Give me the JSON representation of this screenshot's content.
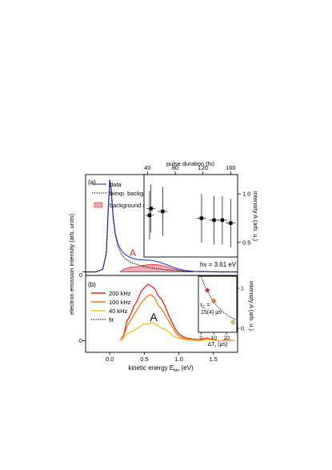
{
  "chart_data": [
    {
      "panel_label": "(a)",
      "type": "line",
      "ylabel": "electron emission intensity (arb. units)",
      "y_tick_labels": [
        "0"
      ],
      "annotation_peak": "A",
      "annotation_photon": "hν = 3.61 eV",
      "legend": [
        "data",
        "biexp. background",
        "background subtracted"
      ],
      "legend_placement": "upper-left inside panel",
      "x_range": [
        -0.35,
        1.85
      ],
      "y_range": [
        -0.03,
        1.05
      ],
      "series": [
        {
          "name": "data",
          "color": "#3a4fd8",
          "x": [
            -0.35,
            -0.2,
            -0.1,
            -0.05,
            -0.02,
            0.0,
            0.02,
            0.05,
            0.08,
            0.12,
            0.17,
            0.22,
            0.3,
            0.4,
            0.5,
            0.6,
            0.7,
            0.8,
            0.9,
            1.0,
            1.1,
            1.2,
            1.4,
            1.6,
            1.85
          ],
          "y": [
            0.0,
            0.0,
            0.03,
            0.2,
            0.72,
            1.0,
            0.9,
            0.6,
            0.42,
            0.3,
            0.23,
            0.19,
            0.155,
            0.135,
            0.13,
            0.125,
            0.11,
            0.085,
            0.055,
            0.03,
            0.015,
            0.007,
            0.003,
            0.0,
            0.0
          ]
        },
        {
          "name": "biexp. background",
          "color": "#000000",
          "x": [
            -0.35,
            -0.2,
            -0.1,
            -0.05,
            -0.02,
            0.0,
            0.02,
            0.05,
            0.08,
            0.12,
            0.17,
            0.22,
            0.3,
            0.4,
            0.5,
            0.6,
            0.7,
            0.8,
            0.9,
            1.0,
            1.1,
            1.2,
            1.4,
            1.6,
            1.85
          ],
          "y": [
            0.0,
            0.0,
            0.03,
            0.2,
            0.72,
            1.0,
            0.88,
            0.58,
            0.4,
            0.27,
            0.19,
            0.145,
            0.105,
            0.078,
            0.058,
            0.043,
            0.032,
            0.023,
            0.016,
            0.011,
            0.007,
            0.004,
            0.0015,
            0.0005,
            0.0
          ]
        },
        {
          "name": "background subtracted",
          "color": "#f2a7b8",
          "x": [
            0.15,
            0.2,
            0.3,
            0.4,
            0.5,
            0.6,
            0.7,
            0.8,
            0.9,
            1.0,
            1.1,
            1.2
          ],
          "y": [
            0.0,
            0.03,
            0.05,
            0.057,
            0.072,
            0.082,
            0.078,
            0.062,
            0.039,
            0.019,
            0.008,
            0.003
          ]
        }
      ]
    },
    {
      "panel_label": "",
      "type": "scatter",
      "x_axis_title": "pulse duration (fs)",
      "x_tick_labels": [
        "40",
        "80",
        "120",
        "160"
      ],
      "ylabel": "intensity A (arb. u.)",
      "y_tick_labels": [
        "0.5",
        "1.0"
      ],
      "x_range": [
        35,
        170
      ],
      "y_range": [
        0.35,
        1.2
      ],
      "points": [
        {
          "x": 45,
          "y": 0.85,
          "xerr": 6,
          "yerr": 0.25
        },
        {
          "x": 43,
          "y": 0.78,
          "xerr": 6,
          "yerr": 0.25
        },
        {
          "x": 62,
          "y": 0.82,
          "xerr": 7,
          "yerr": 0.25
        },
        {
          "x": 118,
          "y": 0.75,
          "xerr": 7,
          "yerr": 0.25
        },
        {
          "x": 136,
          "y": 0.73,
          "xerr": 7,
          "yerr": 0.25
        },
        {
          "x": 148,
          "y": 0.73,
          "xerr": 7,
          "yerr": 0.25
        },
        {
          "x": 160,
          "y": 0.7,
          "xerr": 7,
          "yerr": 0.25
        }
      ]
    },
    {
      "panel_label": "(b)",
      "type": "line",
      "xlabel": "kinetic energy E",
      "xlabel_subscript": "kin",
      "xlabel_unit": " (eV)",
      "x_tick_labels": [
        "0.0",
        "0.5",
        "1.0",
        "1.5"
      ],
      "y_tick_labels": [
        "0"
      ],
      "annotation_peak": "A",
      "legend": [
        "200 kHz",
        "100 kHz",
        "40 kHz",
        "fit"
      ],
      "legend_placement": "upper-left inside panel",
      "x_range": [
        -0.35,
        1.85
      ],
      "y_range": [
        -0.2,
        1.05
      ],
      "series": [
        {
          "name": "200 kHz",
          "color": "#e52a1f",
          "x": [
            0.15,
            0.2,
            0.25,
            0.3,
            0.35,
            0.4,
            0.45,
            0.5,
            0.55,
            0.6,
            0.65,
            0.7,
            0.75,
            0.8,
            0.85,
            0.9,
            0.95,
            1.0,
            1.05,
            1.1,
            1.2,
            1.3,
            1.4,
            1.5,
            1.6,
            1.7,
            1.8
          ],
          "y": [
            0.0,
            0.1,
            0.35,
            0.45,
            0.6,
            0.7,
            0.85,
            0.92,
            0.98,
            0.95,
            0.9,
            0.78,
            0.72,
            0.6,
            0.45,
            0.32,
            0.2,
            0.12,
            0.08,
            0.05,
            0.03,
            0.02,
            0.05,
            0.02,
            0.0,
            0.02,
            0.0
          ]
        },
        {
          "name": "100 kHz",
          "color": "#f07a1a",
          "x": [
            0.15,
            0.2,
            0.25,
            0.3,
            0.35,
            0.4,
            0.45,
            0.5,
            0.55,
            0.6,
            0.65,
            0.7,
            0.75,
            0.8,
            0.85,
            0.9,
            0.95,
            1.0,
            1.05,
            1.1,
            1.2,
            1.3,
            1.4,
            1.5,
            1.6,
            1.7,
            1.8
          ],
          "y": [
            0.0,
            0.08,
            0.25,
            0.35,
            0.45,
            0.55,
            0.65,
            0.72,
            0.78,
            0.8,
            0.74,
            0.62,
            0.55,
            0.45,
            0.35,
            0.25,
            0.15,
            0.08,
            0.05,
            0.03,
            0.02,
            0.01,
            0.04,
            0.01,
            0.0,
            0.01,
            0.0
          ]
        },
        {
          "name": "40 kHz",
          "color": "#f5c11a",
          "x": [
            0.15,
            0.2,
            0.25,
            0.3,
            0.35,
            0.4,
            0.45,
            0.5,
            0.55,
            0.6,
            0.65,
            0.7,
            0.75,
            0.8,
            0.85,
            0.9,
            0.95,
            1.0,
            1.05,
            1.1,
            1.2,
            1.3,
            1.4,
            1.5,
            1.6,
            1.7,
            1.8
          ],
          "y": [
            0.0,
            0.05,
            0.12,
            0.15,
            0.18,
            0.22,
            0.26,
            0.3,
            0.28,
            0.32,
            0.3,
            0.25,
            0.22,
            0.2,
            0.15,
            0.1,
            0.06,
            0.04,
            0.03,
            0.02,
            0.01,
            0.0,
            0.02,
            0.01,
            0.0,
            0.01,
            0.0
          ]
        }
      ]
    },
    {
      "panel_label": "",
      "type": "scatter",
      "annotation_tau": "τ",
      "annotation_tau_sub": "C",
      "annotation_tau_eq": " =",
      "annotation_tau_value": "15(4) μs",
      "xlabel": "ΔT",
      "xlabel_subscript": "r",
      "xlabel_unit": " (μs)",
      "x_tick_labels": [
        "0",
        "10",
        "20"
      ],
      "ylabel": "intensity A (arb. u.)",
      "y_tick_labels": [
        "0",
        "1"
      ],
      "x_range": [
        -2,
        28
      ],
      "y_range": [
        -0.1,
        1.3
      ],
      "points": [
        {
          "x": 5,
          "y": 0.95,
          "color": "#e52a1f"
        },
        {
          "x": 10,
          "y": 0.68,
          "color": "#f07a1a"
        },
        {
          "x": 25,
          "y": 0.15,
          "color": "#f5c11a"
        }
      ],
      "fit": {
        "name": "fit",
        "tau": 15,
        "amplitude": 1.3,
        "color": "#000000"
      }
    }
  ]
}
